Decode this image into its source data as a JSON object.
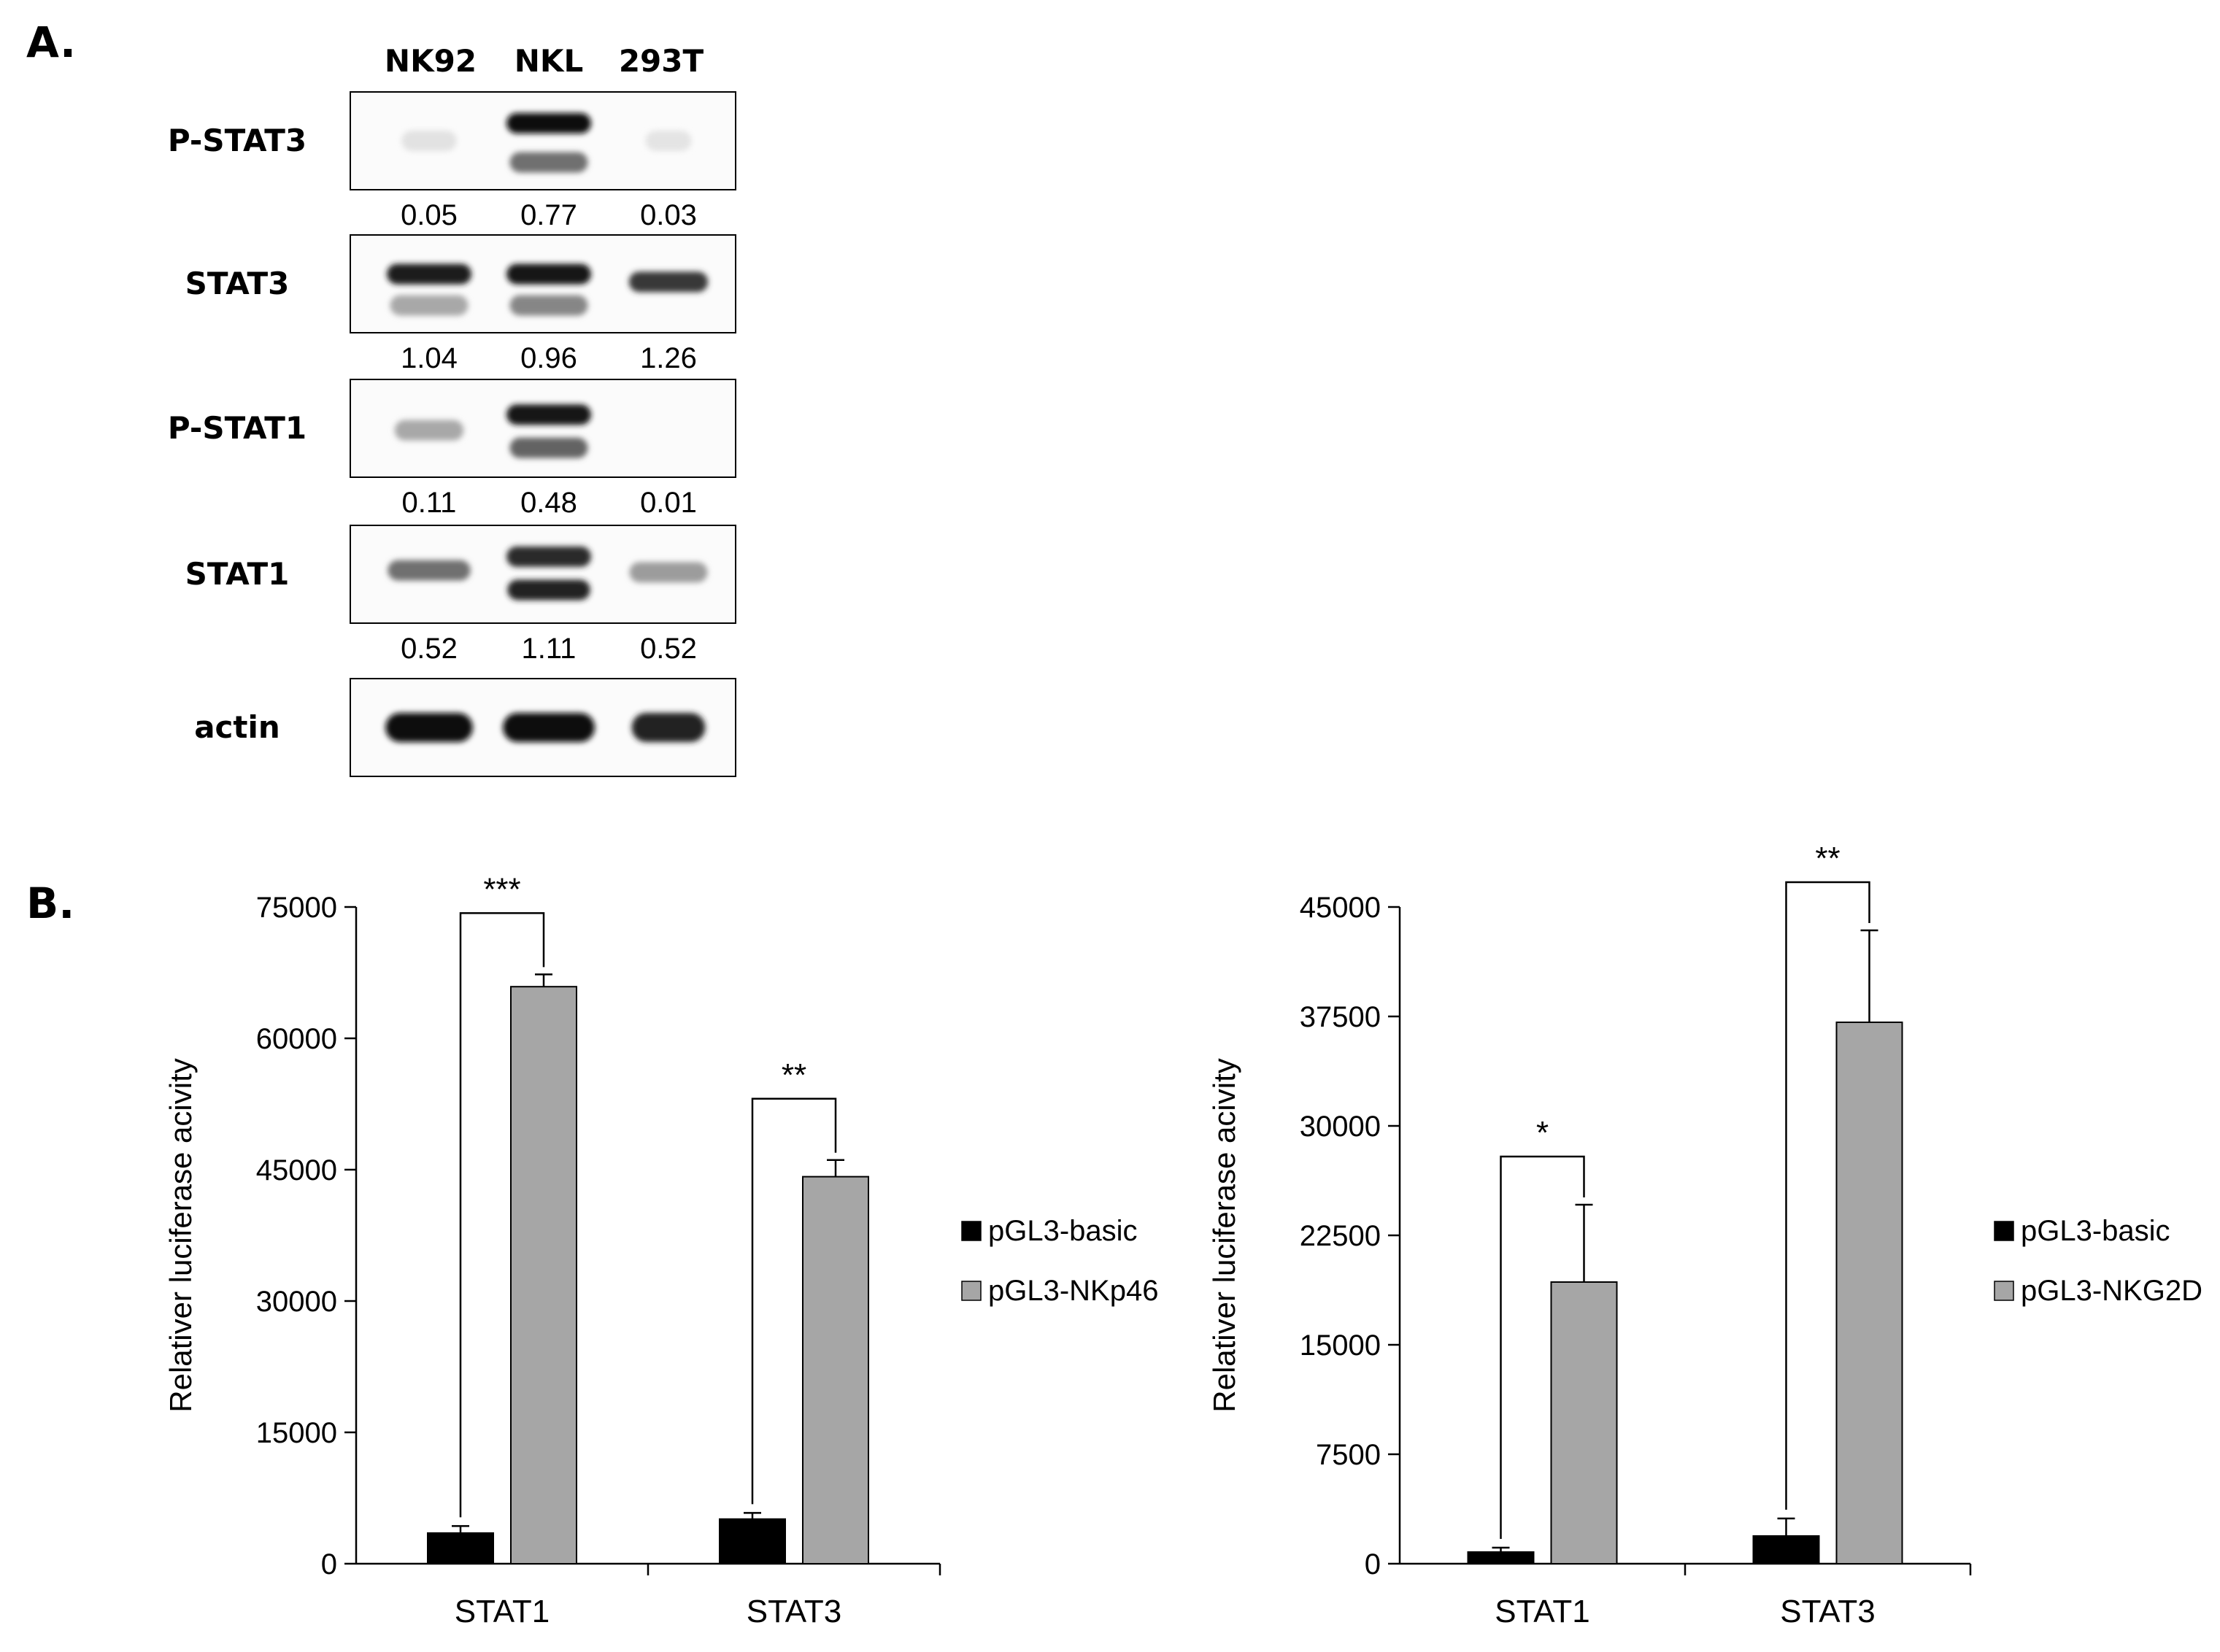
{
  "panel_a": {
    "label": "A.",
    "lanes": [
      "NK92",
      "NKL",
      "293T"
    ],
    "blots": [
      {
        "name": "P-STAT3",
        "quant": [
          "0.05",
          "0.77",
          "0.03"
        ],
        "bands": [
          [
            {
              "offset": 0,
              "intensity": 0.04,
              "width": 0.6
            }
          ],
          [
            {
              "offset": -0.18,
              "intensity": 1.0,
              "width": 0.92
            },
            {
              "offset": 0.22,
              "intensity": 0.55,
              "width": 0.85
            }
          ],
          [
            {
              "offset": 0,
              "intensity": 0.03,
              "width": 0.5
            }
          ]
        ]
      },
      {
        "name": "STAT3",
        "quant": [
          "1.04",
          "0.96",
          "1.26"
        ],
        "bands": [
          [
            {
              "offset": -0.1,
              "intensity": 0.92,
              "width": 0.92
            },
            {
              "offset": 0.22,
              "intensity": 0.3,
              "width": 0.85
            }
          ],
          [
            {
              "offset": -0.1,
              "intensity": 0.95,
              "width": 0.92
            },
            {
              "offset": 0.22,
              "intensity": 0.45,
              "width": 0.85
            }
          ],
          [
            {
              "offset": -0.02,
              "intensity": 0.8,
              "width": 0.86
            }
          ]
        ]
      },
      {
        "name": "P-STAT1",
        "quant": [
          "0.11",
          "0.48",
          "0.01"
        ],
        "bands": [
          [
            {
              "offset": 0.02,
              "intensity": 0.3,
              "width": 0.75
            }
          ],
          [
            {
              "offset": -0.14,
              "intensity": 0.95,
              "width": 0.92
            },
            {
              "offset": 0.2,
              "intensity": 0.6,
              "width": 0.85
            }
          ],
          [
            {
              "offset": 0,
              "intensity": 0.0,
              "width": 0.5
            }
          ]
        ]
      },
      {
        "name": "STAT1",
        "quant": [
          "0.52",
          "1.11",
          "0.52"
        ],
        "bands": [
          [
            {
              "offset": -0.04,
              "intensity": 0.55,
              "width": 0.9
            }
          ],
          [
            {
              "offset": -0.18,
              "intensity": 0.85,
              "width": 0.92
            },
            {
              "offset": 0.16,
              "intensity": 0.9,
              "width": 0.9
            }
          ],
          [
            {
              "offset": -0.02,
              "intensity": 0.35,
              "width": 0.85
            }
          ]
        ]
      },
      {
        "name": "actin",
        "quant": [],
        "bands": [
          [
            {
              "offset": 0,
              "intensity": 1.0,
              "width": 0.95
            }
          ],
          [
            {
              "offset": 0,
              "intensity": 1.0,
              "width": 1.0
            }
          ],
          [
            {
              "offset": 0,
              "intensity": 0.9,
              "width": 0.8
            }
          ]
        ]
      }
    ]
  },
  "panel_b": {
    "label": "B."
  },
  "chart_data": [
    {
      "type": "bar",
      "title": "",
      "ylabel": "Relativer luciferase acivity",
      "xlabel": "",
      "categories": [
        "STAT1",
        "STAT3"
      ],
      "ylim": [
        0,
        75000
      ],
      "yticks": [
        "0",
        "15000",
        "30000",
        "45000",
        "60000",
        "75000"
      ],
      "legend_position": "right",
      "grid": false,
      "series": [
        {
          "name": "pGL3-basic",
          "color": "#000000",
          "values": [
            3500,
            5100
          ],
          "errors": [
            800,
            700
          ]
        },
        {
          "name": "pGL3-NKp46",
          "color": "#a6a6a6",
          "values": [
            65900,
            44200
          ],
          "errors": [
            1400,
            1900
          ]
        }
      ],
      "significance": [
        "***",
        "**"
      ]
    },
    {
      "type": "bar",
      "title": "",
      "ylabel": "Relativer luciferase acivity",
      "xlabel": "",
      "categories": [
        "STAT1",
        "STAT3"
      ],
      "ylim": [
        0,
        45000
      ],
      "yticks": [
        "0",
        "7500",
        "15000",
        "22500",
        "30000",
        "37500",
        "45000"
      ],
      "legend_position": "right",
      "grid": false,
      "series": [
        {
          "name": "pGL3-basic",
          "color": "#000000",
          "values": [
            800,
            1900
          ],
          "errors": [
            300,
            1200
          ]
        },
        {
          "name": "pGL3-NKG2D",
          "color": "#a6a6a6",
          "values": [
            19300,
            37100
          ],
          "errors": [
            5300,
            6300
          ]
        }
      ],
      "significance": [
        "*",
        "**"
      ]
    }
  ]
}
